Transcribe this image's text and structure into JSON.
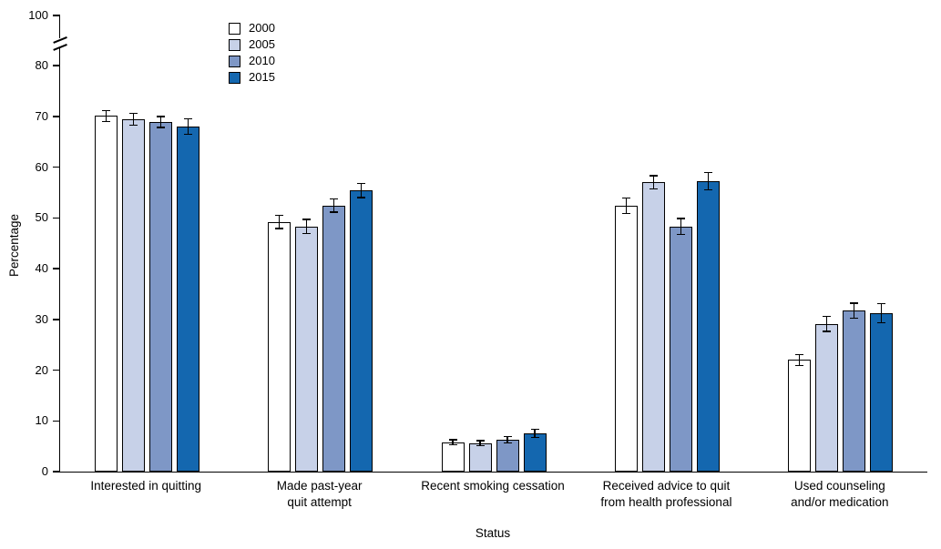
{
  "chart_data": {
    "type": "bar",
    "title": "",
    "xlabel": "Status",
    "ylabel": "Percentage",
    "ylim": [
      0,
      100
    ],
    "yticks": [
      0,
      10,
      20,
      30,
      40,
      50,
      60,
      70,
      80,
      100
    ],
    "axis_break": {
      "between": [
        80,
        100
      ]
    },
    "grid": "off",
    "legend_position": "top-left-inside",
    "categories": [
      "Interested in quitting",
      "Made past-year\nquit attempt",
      "Recent smoking cessation",
      "Received advice to quit\nfrom health professional",
      "Used counseling\nand/or medication"
    ],
    "series": [
      {
        "name": "2000",
        "color": "#ffffff",
        "values": [
          70.1,
          49.2,
          5.8,
          52.4,
          22.0
        ],
        "errors": [
          1.2,
          1.4,
          0.6,
          1.6,
          1.2
        ]
      },
      {
        "name": "2005",
        "color": "#c7d1e8",
        "values": [
          69.4,
          48.3,
          5.6,
          57.0,
          29.1
        ],
        "errors": [
          1.3,
          1.5,
          0.6,
          1.4,
          1.6
        ]
      },
      {
        "name": "2010",
        "color": "#7e97c6",
        "values": [
          68.9,
          52.4,
          6.3,
          48.3,
          31.7
        ],
        "errors": [
          1.2,
          1.4,
          0.7,
          1.7,
          1.6
        ]
      },
      {
        "name": "2015",
        "color": "#1467af",
        "values": [
          68.0,
          55.4,
          7.5,
          57.2,
          31.2
        ],
        "errors": [
          1.6,
          1.5,
          0.9,
          1.8,
          2.0
        ]
      }
    ]
  }
}
